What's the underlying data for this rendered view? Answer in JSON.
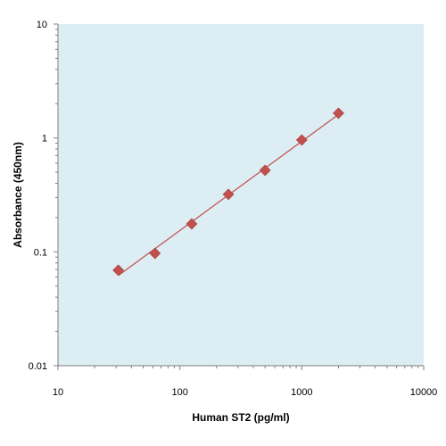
{
  "chart_data": {
    "type": "scatter",
    "title": "",
    "xlabel": "Human ST2 (pg/ml)",
    "ylabel": "Absorbance (450nm)",
    "x_scale": "log",
    "y_scale": "log",
    "xlim": [
      10,
      10000
    ],
    "ylim": [
      0.01,
      10
    ],
    "x_ticks": [
      "10",
      "100",
      "1000",
      "10000"
    ],
    "y_ticks": [
      "0.01",
      "0.1",
      "1",
      "10"
    ],
    "grid": false,
    "legend": "none",
    "colors": {
      "plot_background": "#dcedf3",
      "marker": "#c0504d",
      "trendline": "#c0504d"
    },
    "series": [
      {
        "marker": "diamond",
        "trendline": "power",
        "x": [
          31.25,
          62.5,
          125,
          250,
          500,
          1000,
          2000
        ],
        "y": [
          0.069,
          0.097,
          0.176,
          0.32,
          0.52,
          0.96,
          1.65
        ]
      }
    ]
  }
}
